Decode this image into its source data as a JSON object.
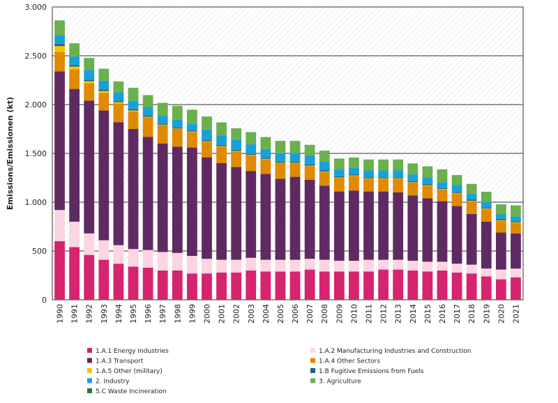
{
  "chart_data": {
    "type": "stacked_bar",
    "y_label": "Emissions/Emissionen (kt)",
    "categories": [
      "1990",
      "1991",
      "1992",
      "1993",
      "1994",
      "1995",
      "1996",
      "1997",
      "1998",
      "1999",
      "2000",
      "2001",
      "2002",
      "2003",
      "2004",
      "2005",
      "2006",
      "2007",
      "2008",
      "2009",
      "2010",
      "2011",
      "2012",
      "2013",
      "2014",
      "2015",
      "2016",
      "2017",
      "2018",
      "2019",
      "2020",
      "2021"
    ],
    "ylim": [
      0,
      3000
    ],
    "yticks": [
      0,
      500,
      {
        "value": 1000,
        "label": "1.000"
      },
      {
        "value": 1500,
        "label": "1.500"
      },
      {
        "value": 2000,
        "label": "2.000"
      },
      {
        "value": 2500,
        "label": "2.500"
      },
      {
        "value": 3000,
        "label": "3.000"
      }
    ],
    "grid": true,
    "series": [
      {
        "name": "1.A.1 Energy Industries",
        "color": "#d6246e",
        "values": [
          600,
          540,
          460,
          410,
          370,
          340,
          330,
          300,
          300,
          270,
          270,
          280,
          280,
          300,
          290,
          290,
          290,
          310,
          290,
          290,
          290,
          290,
          310,
          310,
          300,
          290,
          300,
          280,
          270,
          240,
          210,
          230
        ]
      },
      {
        "name": "1.A.2 Manufacturing Industries and Construction",
        "color": "#fbd5e3",
        "values": [
          320,
          260,
          220,
          200,
          190,
          180,
          180,
          190,
          180,
          180,
          150,
          130,
          130,
          130,
          120,
          120,
          120,
          110,
          120,
          110,
          110,
          120,
          100,
          100,
          100,
          100,
          90,
          90,
          90,
          80,
          100,
          90
        ]
      },
      {
        "name": "1.A.3 Transport",
        "color": "#5f2a62",
        "values": [
          1420,
          1360,
          1360,
          1330,
          1260,
          1230,
          1160,
          1110,
          1090,
          1110,
          1040,
          990,
          950,
          890,
          880,
          830,
          850,
          810,
          760,
          710,
          720,
          700,
          700,
          690,
          670,
          650,
          620,
          590,
          520,
          480,
          380,
          360
        ]
      },
      {
        "name": "1.A.4 Other Sectors",
        "color": "#e08a00",
        "values": [
          200,
          200,
          180,
          180,
          190,
          180,
          200,
          190,
          180,
          160,
          160,
          170,
          160,
          160,
          150,
          160,
          140,
          140,
          140,
          140,
          150,
          130,
          130,
          140,
          130,
          130,
          120,
          130,
          130,
          130,
          120,
          110
        ]
      },
      {
        "name": "1.A.5 Other (military)",
        "color": "#f5c400",
        "values": [
          60,
          30,
          20,
          20,
          15,
          10,
          5,
          5,
          5,
          5,
          5,
          5,
          5,
          5,
          5,
          5,
          5,
          5,
          5,
          5,
          5,
          5,
          5,
          5,
          5,
          5,
          5,
          5,
          5,
          5,
          5,
          5
        ]
      },
      {
        "name": "1.B Fugitive Emissions from Fuels",
        "color": "#1a5f80",
        "values": [
          20,
          15,
          15,
          15,
          10,
          10,
          10,
          10,
          10,
          10,
          10,
          10,
          10,
          10,
          10,
          10,
          10,
          10,
          10,
          10,
          10,
          10,
          10,
          10,
          10,
          10,
          10,
          10,
          10,
          10,
          10,
          10
        ]
      },
      {
        "name": "2. Industry",
        "color": "#1aa0d8",
        "values": [
          90,
          90,
          100,
          90,
          90,
          90,
          90,
          80,
          80,
          70,
          110,
          100,
          110,
          100,
          90,
          90,
          90,
          90,
          90,
          70,
          70,
          70,
          70,
          70,
          70,
          70,
          60,
          70,
          60,
          60,
          50,
          50
        ]
      },
      {
        "name": "3. Agriculture",
        "color": "#6ab04c",
        "values": [
          150,
          130,
          120,
          120,
          110,
          130,
          120,
          130,
          140,
          140,
          130,
          130,
          110,
          120,
          120,
          120,
          120,
          110,
          110,
          110,
          100,
          110,
          110,
          110,
          110,
          110,
          130,
          100,
          100,
          100,
          100,
          110
        ]
      },
      {
        "name": "5.C Waste Incineration",
        "color": "#1e7b34",
        "values": [
          2,
          2,
          2,
          2,
          2,
          2,
          2,
          2,
          2,
          2,
          2,
          2,
          2,
          2,
          2,
          2,
          2,
          2,
          2,
          2,
          2,
          2,
          2,
          2,
          2,
          2,
          2,
          2,
          2,
          2,
          2,
          2
        ]
      }
    ]
  }
}
